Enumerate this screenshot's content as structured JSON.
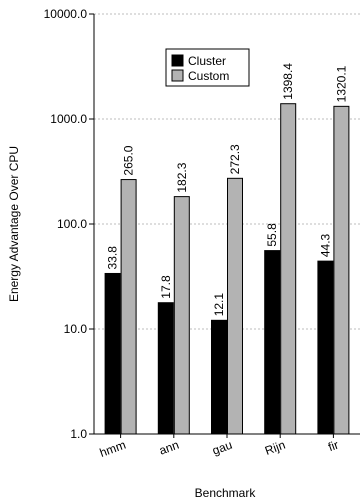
{
  "chart_data": {
    "type": "bar",
    "title": "",
    "xlabel": "Benchmark",
    "ylabel": "Energy Advantage Over CPU",
    "yscale": "log",
    "ylim": [
      1.0,
      10000.0
    ],
    "yticks": [
      "1.0",
      "10.0",
      "100.0",
      "1000.0",
      "10000.0"
    ],
    "ytick_values": [
      1,
      10,
      100,
      1000,
      10000
    ],
    "categories": [
      "hmm",
      "ann",
      "gau",
      "Rijn",
      "fir"
    ],
    "series": [
      {
        "name": "Cluster",
        "color": "#000000",
        "values": [
          33.8,
          17.8,
          12.1,
          55.8,
          44.3
        ],
        "labels": [
          "33.8",
          "17.8",
          "12.1",
          "55.8",
          "44.3"
        ]
      },
      {
        "name": "Custom",
        "color": "#b3b3b3",
        "values": [
          265.0,
          182.3,
          272.3,
          1398.4,
          1320.1
        ],
        "labels": [
          "265.0",
          "182.3",
          "272.3",
          "1398.4",
          "1320.1"
        ]
      }
    ],
    "grid": true,
    "legend": "top-center",
    "data_label_rotation": "vertical"
  }
}
